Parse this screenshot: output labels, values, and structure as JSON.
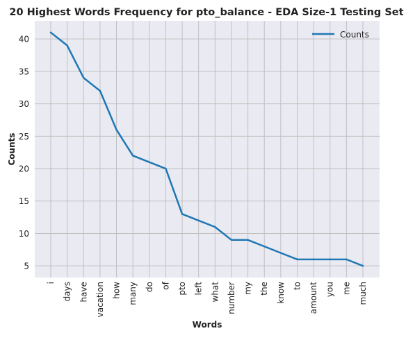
{
  "chart_data": {
    "type": "line",
    "title": "20 Highest Words Frequency for pto_balance - EDA Size-1 Testing Set",
    "xlabel": "Words",
    "ylabel": "Counts",
    "categories": [
      "i",
      "days",
      "have",
      "vacation",
      "how",
      "many",
      "do",
      "of",
      "pto",
      "left",
      "what",
      "number",
      "my",
      "the",
      "know",
      "to",
      "amount",
      "you",
      "me",
      "much"
    ],
    "series": [
      {
        "name": "Counts",
        "values": [
          41,
          39,
          34,
          32,
          26,
          22,
          21,
          20,
          13,
          12,
          11,
          9,
          9,
          8,
          7,
          6,
          6,
          6,
          6,
          5
        ]
      }
    ],
    "ylim": [
      3.2,
      42.8
    ],
    "yticks": [
      5,
      10,
      15,
      20,
      25,
      30,
      35,
      40
    ],
    "grid": true,
    "legend_position": "top-right",
    "colors": {
      "line": "#1f77b4",
      "plot_background": "#eaeaf2",
      "grid": "#c0c0c0"
    }
  }
}
